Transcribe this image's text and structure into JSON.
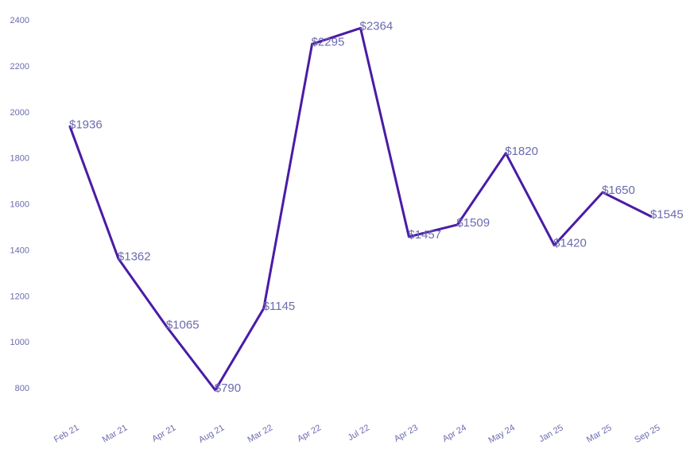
{
  "chart_data": {
    "type": "line",
    "title": "",
    "xlabel": "",
    "ylabel": "",
    "x": [
      "Feb 21",
      "Mar 21",
      "Apr 21",
      "Aug 21",
      "Mar 22",
      "Apr 22",
      "Jul 22",
      "Apr 23",
      "Apr 24",
      "May 24",
      "Jan 25",
      "Mar 25",
      "Sep 25"
    ],
    "series": [
      {
        "values": [
          1936,
          1362,
          1065,
          790,
          1145,
          2295,
          2364,
          1457,
          1509,
          1820,
          1420,
          1650,
          1545
        ],
        "data_labels": [
          "$1936",
          "$1362",
          "$1065",
          "$790",
          "$1145",
          "$2295",
          "$2364",
          "$1457",
          "$1509",
          "$1820",
          "$1420",
          "$1650",
          "$1545"
        ]
      }
    ],
    "yticks": [
      800,
      1000,
      1200,
      1400,
      1600,
      1800,
      2000,
      2200,
      2400
    ],
    "ylim": [
      775,
      2425
    ],
    "grid": false,
    "legend": "none",
    "colors": {
      "line": "#4a1ba6",
      "text": "#6b6bb0",
      "background": "#ffffff"
    }
  }
}
